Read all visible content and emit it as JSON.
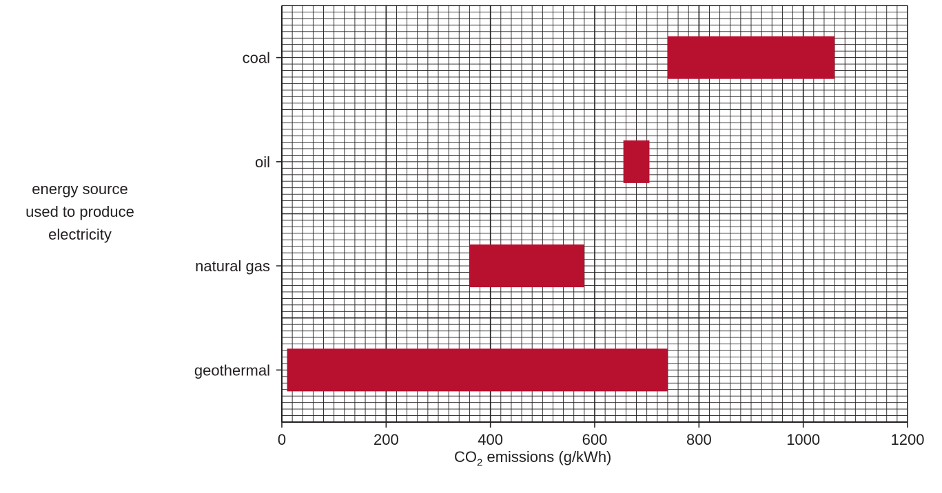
{
  "chart_data": {
    "type": "bar",
    "orientation": "horizontal",
    "bar_style": "floating-range",
    "categories": [
      "coal",
      "oil",
      "natural gas",
      "geothermal"
    ],
    "ranges": [
      {
        "category": "coal",
        "min": 740,
        "max": 1060
      },
      {
        "category": "oil",
        "min": 655,
        "max": 705
      },
      {
        "category": "natural gas",
        "min": 360,
        "max": 580
      },
      {
        "category": "geothermal",
        "min": 10,
        "max": 740
      }
    ],
    "xticks": [
      "0",
      "200",
      "400",
      "600",
      "800",
      "1000",
      "1200"
    ],
    "xlim": [
      0,
      1200
    ],
    "ylabel_lines": [
      "energy source",
      "used to produce",
      "electricity"
    ],
    "xlabel": {
      "prefix": "CO",
      "subscript": "2",
      "suffix": " emissions (g/kWh)"
    },
    "grid": true,
    "legend": "none",
    "bar_color": "#b8102f",
    "grid_color": "#231f20"
  }
}
